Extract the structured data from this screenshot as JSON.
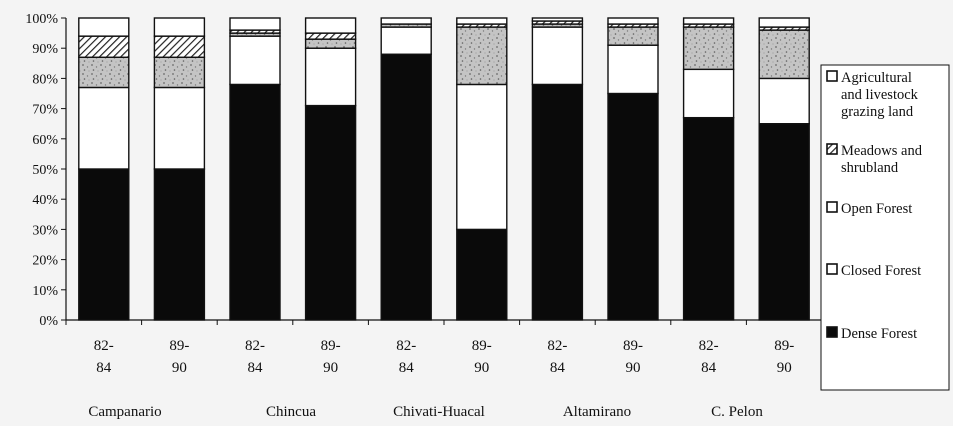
{
  "chart_data": {
    "type": "bar",
    "stacked": true,
    "percent": true,
    "ylim": [
      0,
      100
    ],
    "yticks": [
      "0%",
      "10%",
      "20%",
      "30%",
      "40%",
      "50%",
      "60%",
      "70%",
      "80%",
      "90%",
      "100%"
    ],
    "categories": [
      "82-\n84",
      "89-\n90",
      "82-\n84",
      "89-\n90",
      "82-\n84",
      "89-\n90",
      "82-\n84",
      "89-\n90",
      "82-\n84",
      "89-\n90"
    ],
    "groups": [
      "Campanario",
      "Chincua",
      "Chivati-Huacal",
      "Altamirano",
      "C. Pelon"
    ],
    "series": [
      {
        "name": "Dense Forest",
        "fill": "solid",
        "color": "#0a0a0a",
        "values": [
          50,
          50,
          78,
          71,
          88,
          30,
          78,
          75,
          67,
          65
        ]
      },
      {
        "name": "Closed Forest",
        "fill": "white",
        "color": "#ffffff",
        "values": [
          27,
          27,
          16,
          19,
          9,
          48,
          19,
          16,
          16,
          15
        ]
      },
      {
        "name": "Open Forest",
        "fill": "stipple",
        "color": "#b8b8b8",
        "values": [
          10,
          10,
          1,
          3,
          1,
          19,
          1,
          6,
          14,
          16
        ]
      },
      {
        "name": "Meadows and shrubland",
        "fill": "hatch",
        "color": "#555555",
        "values": [
          7,
          7,
          1,
          2,
          0,
          1,
          1,
          1,
          1,
          1
        ]
      },
      {
        "name": "Agricultural and livestock grazing land",
        "fill": "white",
        "color": "#ffffff",
        "values": [
          6,
          6,
          4,
          5,
          2,
          2,
          1,
          2,
          2,
          3
        ]
      }
    ],
    "legend_position": "right"
  }
}
